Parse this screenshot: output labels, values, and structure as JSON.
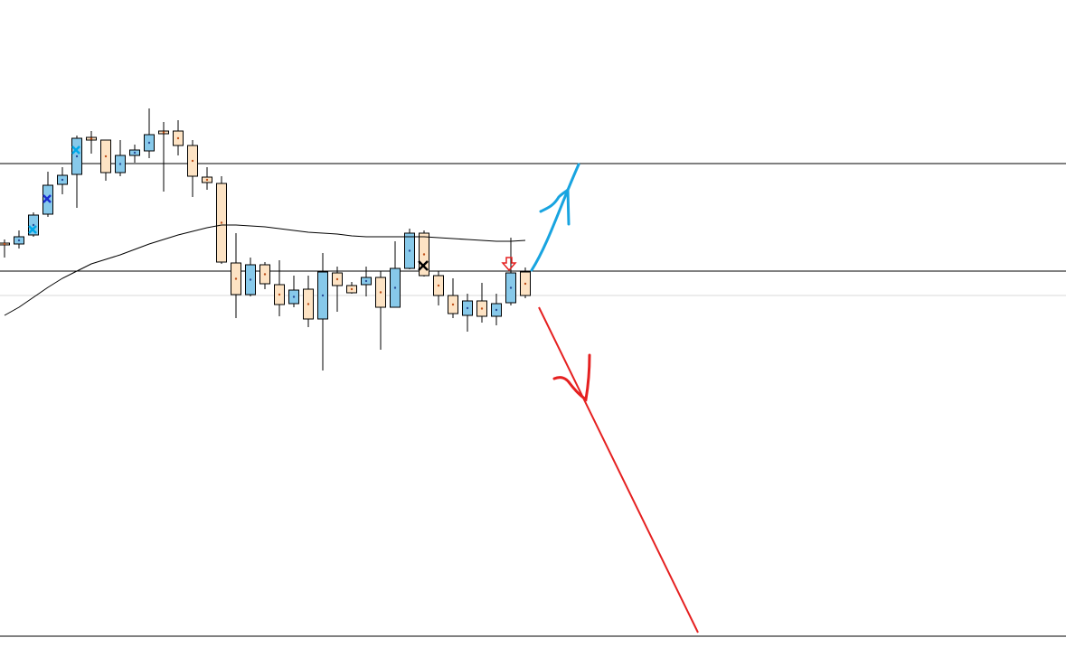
{
  "chart_data": {
    "type": "candlestick",
    "ylim": [
      0,
      737
    ],
    "up_color": "#87c9ea",
    "down_color": "#fde3c4",
    "open": [
      468,
      467,
      477,
      500,
      533,
      544,
      585,
      582,
      546,
      565,
      570,
      592,
      592,
      576,
      541,
      534,
      446,
      411,
      444,
      422,
      401,
      417,
      384,
      435,
      421,
      422,
      430,
      397,
      440,
      479,
      432,
      410,
      388,
      404,
      387,
      402,
      436
    ],
    "high": [
      472,
      482,
      502,
      547,
      552,
      587,
      592,
      582,
      582,
      577,
      617,
      602,
      604,
      582,
      552,
      542,
      479,
      452,
      447,
      449,
      432,
      432,
      457,
      442,
      425,
      442,
      437,
      470,
      484,
      482,
      437,
      429,
      412,
      424,
      412,
      474,
      441
    ],
    "low": [
      452,
      462,
      475,
      497,
      522,
      507,
      567,
      537,
      542,
      557,
      562,
      525,
      565,
      519,
      527,
      445,
      385,
      409,
      417,
      387,
      397,
      375,
      327,
      392,
      412,
      409,
      350,
      397,
      439,
      431,
      399,
      385,
      370,
      380,
      377,
      399,
      407
    ],
    "close": [
      466,
      475,
      499,
      532,
      543,
      584,
      582,
      546,
      565,
      571,
      588,
      589,
      576,
      542,
      535,
      447,
      411,
      444,
      423,
      400,
      416,
      384,
      436,
      421,
      413,
      430,
      397,
      440,
      479,
      432,
      410,
      390,
      404,
      387,
      401,
      435,
      410
    ],
    "ma": {
      "color": "#000000",
      "values": [
        388,
        397,
        408,
        419,
        429,
        437,
        445,
        450,
        455,
        461,
        467,
        472,
        477,
        481,
        485,
        488,
        488,
        487,
        486,
        484,
        482,
        480,
        479,
        478,
        476,
        475,
        475,
        475,
        475,
        475,
        474,
        473,
        472,
        471,
        470,
        470,
        471
      ]
    },
    "levels": [
      {
        "value": 556,
        "color": "#000000"
      },
      {
        "value": 437,
        "color": "#000000"
      },
      {
        "value": 410,
        "color": "#d8d8d8"
      },
      {
        "value": 33,
        "color": "#000000"
      }
    ]
  }
}
